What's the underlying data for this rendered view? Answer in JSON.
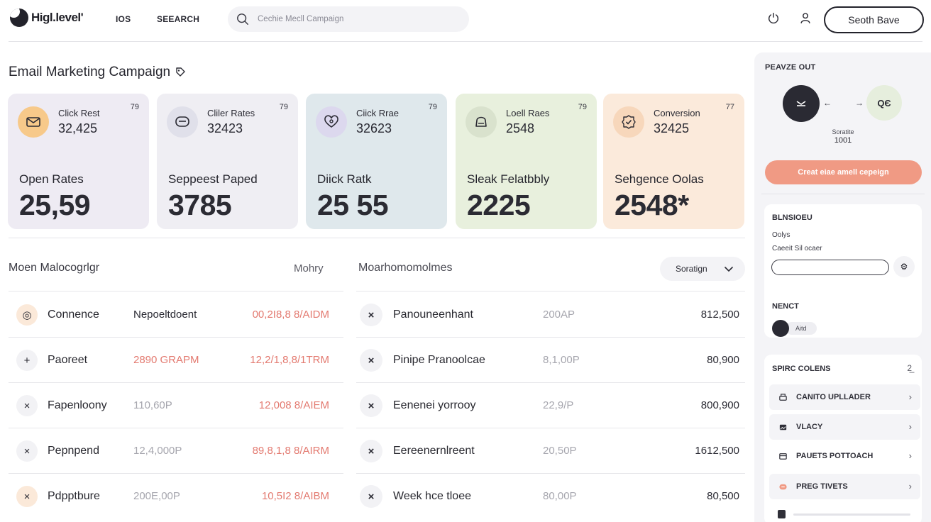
{
  "topbar": {
    "logo_text": "Higl.level'",
    "nav": [
      "IOS",
      "SEEARCH"
    ],
    "search_placeholder": "Cechie Mecll Campaign",
    "cta_label": "Seoth Bave"
  },
  "page_title": "Email Marketing Campaign",
  "cards": [
    {
      "metric_label": "Click Rest",
      "metric_value": "32,425",
      "tiny": "79",
      "big_label": "Open Rates",
      "big_value": "25,59",
      "bg": "#eeebf3",
      "icon_bg": "#f7c98a",
      "icon": "mail-icon"
    },
    {
      "metric_label": "Cliler Rates",
      "metric_value": "32423",
      "tiny": "79",
      "big_label": "Seppeest Paped",
      "big_value": "3785",
      "bg": "#efeef3",
      "icon_bg": "#e0e0ea",
      "icon": "chat-icon"
    },
    {
      "metric_label": "Ciick Rrae",
      "metric_value": "32623",
      "tiny": "79",
      "big_label": "Diick Ratk",
      "big_value": "25 55",
      "bg": "#dfe8ec",
      "icon_bg": "#dcd8ee",
      "icon": "heart-icon"
    },
    {
      "metric_label": "Loell Raes",
      "metric_value": "2548",
      "tiny": "79",
      "big_label": "Sleak Felatbbly",
      "big_value": "2225",
      "bg": "#e8f0dd",
      "icon_bg": "#d9e2cd",
      "icon": "bag-icon"
    },
    {
      "metric_label": "Conversion",
      "metric_value": "32425",
      "tiny": "77",
      "big_label": "Sehgence Oolas",
      "big_value": "2548*",
      "bg": "#fbeadb",
      "icon_bg": "#f7d7bb",
      "icon": "badge-icon"
    }
  ],
  "left_table": {
    "title": "Moen Malocogrlgr",
    "column": "Mohry",
    "rows": [
      {
        "icon": "◎",
        "name": "Connence",
        "mid": "Nepoeltdoent",
        "mid_style": "dark",
        "right": "00,2I8,8 8/AIDM"
      },
      {
        "icon": "+",
        "name": "Paoreet",
        "mid": "2890 GRAPM",
        "mid_style": "red",
        "right": "12,2/1,8,8/1TRM"
      },
      {
        "icon": "×",
        "name": "Fapenloony",
        "mid": "110,60P",
        "mid_style": "gray",
        "right": "12,008 8/AIEM"
      },
      {
        "icon": "×",
        "name": "Pepnpend",
        "mid": "12,4,000P",
        "mid_style": "gray",
        "right": "89,8,1,8 8/AIRM"
      },
      {
        "icon": "×",
        "name": "Pdpptbure",
        "mid": "200E,00P",
        "mid_style": "gray",
        "right": "10,5I2 8/AIBM"
      }
    ]
  },
  "right_table": {
    "title": "Moarhomomolmes",
    "sort_label": "Soratign",
    "rows": [
      {
        "name": "Panouneenhant",
        "mid": "200AP",
        "right": "812,500"
      },
      {
        "name": "Pinipe Pranoolcae",
        "mid": "8,1,00P",
        "right": "80,900"
      },
      {
        "name": "Eenenei yorrooy",
        "mid": "22,9/P",
        "right": "800,900"
      },
      {
        "name": "Eereenernlreent",
        "mid": "20,50P",
        "right": "1612,500"
      },
      {
        "name": "Week hce tloee",
        "mid": "80,00P",
        "right": "80,500"
      }
    ]
  },
  "panel": {
    "head": "PEAVZE OUT",
    "flow_b_text": "QЄ",
    "caption1": "Soratite",
    "caption2": "1001",
    "create_label": "Creat eiae amell cepeign",
    "sub1": {
      "head": "BLNSIOEU",
      "line1": "Oolys",
      "line2": "Caeeit Sil ocaer",
      "button_icon": "⚙",
      "next_head": "NENCT",
      "chip": "Aitd"
    },
    "sub2": {
      "head": "SPIRC COLENS",
      "head_icon": "2̲",
      "items": [
        "CANITO UPLLADER",
        "VLACY",
        "PAUETS POTTOACH",
        "PREG TIVETS"
      ]
    }
  }
}
